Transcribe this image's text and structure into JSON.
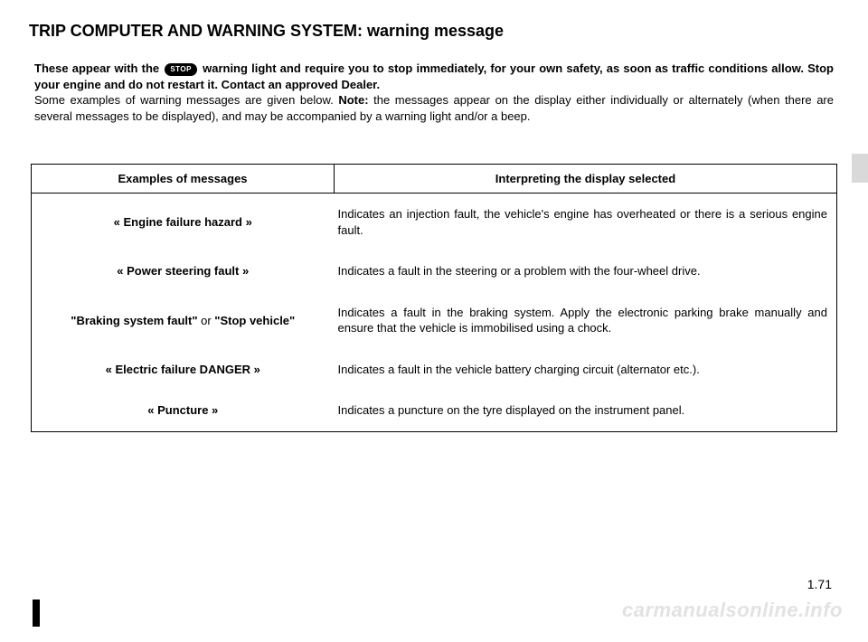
{
  "title": "TRIP COMPUTER AND WARNING SYSTEM: warning message",
  "stop_label": "STOP",
  "intro": {
    "p1a": "These appear with the ",
    "p1b": " warning light and require you to stop immediately, for your own safety, as soon as traffic conditions allow. Stop your engine and do not restart it. Contact an approved Dealer.",
    "p2a": "Some examples of warning messages are given below. ",
    "p2b": "Note:",
    "p2c": " the messages appear on the display either individually or alternately (when there are several messages to be displayed), and may be accompanied by a warning light and/or a beep."
  },
  "table": {
    "header": {
      "col1": "Examples of messages",
      "col2": "Interpreting the display selected"
    },
    "rows": [
      {
        "msg": "« Engine failure hazard »",
        "desc": "Indicates an injection fault, the vehicle's engine has overheated or there is a serious engine fault."
      },
      {
        "msg": "« Power steering fault »",
        "desc": "Indicates a fault in the steering or a problem with the four-wheel drive."
      },
      {
        "msg_a": "\"Braking system fault\"",
        "msg_join": " or ",
        "msg_b": "\"Stop vehicle\"",
        "desc": "Indicates a fault in the braking system. Apply the electronic parking brake manually and ensure that the vehicle is immobilised using a chock."
      },
      {
        "msg": "« Electric failure DANGER »",
        "desc": "Indicates a fault in the vehicle battery charging circuit (alternator etc.)."
      },
      {
        "msg": "« Puncture »",
        "desc": "Indicates a puncture on the tyre displayed on the instrument panel."
      }
    ]
  },
  "page_number": "1.71",
  "watermark": "carmanualsonline.info"
}
